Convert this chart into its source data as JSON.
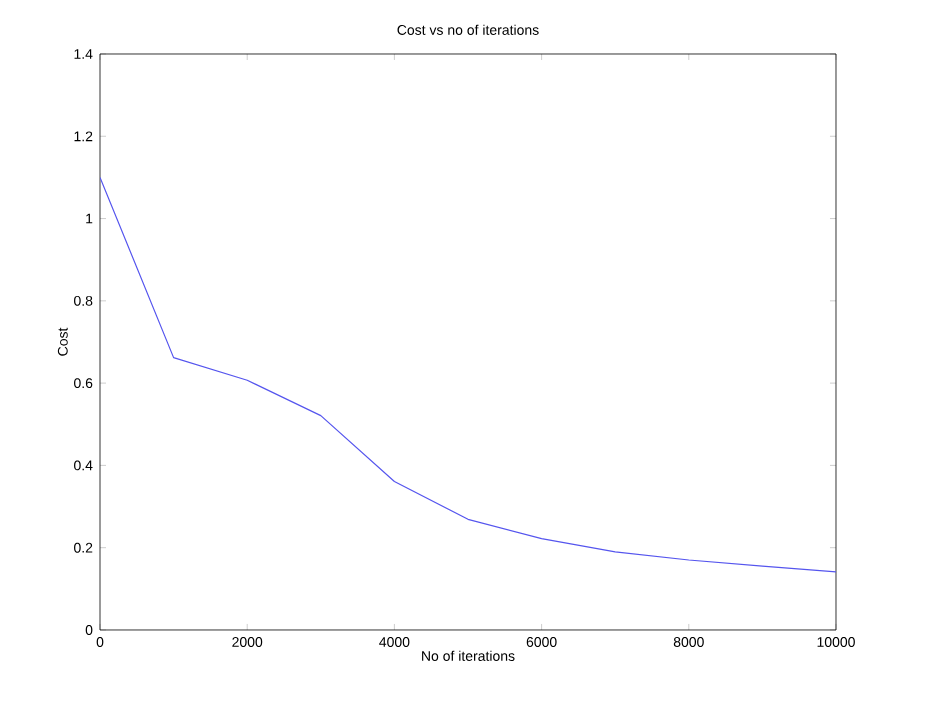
{
  "chart_data": {
    "type": "line",
    "title": "Cost vs no of iterations",
    "xlabel": "No of iterations",
    "ylabel": "Cost",
    "x": [
      0,
      1000,
      2000,
      3000,
      4000,
      5000,
      6000,
      7000,
      8000,
      9000,
      10000
    ],
    "series": [
      {
        "color": "#5555ee",
        "values": [
          1.1,
          0.662,
          0.607,
          0.521,
          0.361,
          0.269,
          0.222,
          0.19,
          0.17,
          0.155,
          0.141
        ]
      }
    ],
    "xlim": [
      0,
      10000
    ],
    "xticks": [
      0,
      2000,
      4000,
      6000,
      8000,
      10000
    ],
    "ylim": [
      0,
      1.4
    ],
    "yticks": [
      0,
      0.2,
      0.4,
      0.6,
      0.8,
      1,
      1.2,
      1.4
    ],
    "grid": false,
    "marker": "none",
    "line_style": "solid"
  }
}
